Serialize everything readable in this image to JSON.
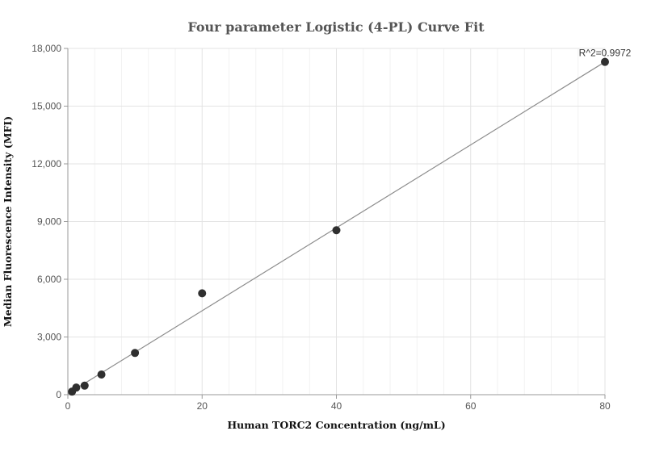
{
  "chart_data": {
    "type": "scatter",
    "title": "Four parameter Logistic (4-PL) Curve Fit",
    "xlabel": "Human TORC2 Concentration (ng/mL)",
    "ylabel": "Median Fluorescence Intensity (MFI)",
    "xlim": [
      0,
      80
    ],
    "ylim": [
      0,
      18000
    ],
    "xticks": [
      0,
      20,
      40,
      60,
      80
    ],
    "xtick_labels": [
      "0",
      "20",
      "40",
      "60",
      "80"
    ],
    "yticks": [
      0,
      3000,
      6000,
      9000,
      12000,
      15000,
      18000
    ],
    "ytick_labels": [
      "0",
      "3,000",
      "6,000",
      "9,000",
      "12,000",
      "15,000",
      "18,000"
    ],
    "grid": true,
    "points": [
      {
        "x": 0.625,
        "y": 160
      },
      {
        "x": 1.25,
        "y": 370
      },
      {
        "x": 2.5,
        "y": 470
      },
      {
        "x": 5,
        "y": 1050
      },
      {
        "x": 10,
        "y": 2170
      },
      {
        "x": 20,
        "y": 5270
      },
      {
        "x": 40,
        "y": 8550
      },
      {
        "x": 80,
        "y": 17300
      }
    ],
    "fit_line": [
      {
        "x": 0,
        "y": 50
      },
      {
        "x": 80,
        "y": 17300
      }
    ],
    "annotation": {
      "text": "R^2=0.9972",
      "x": 80,
      "y": 17300
    }
  }
}
